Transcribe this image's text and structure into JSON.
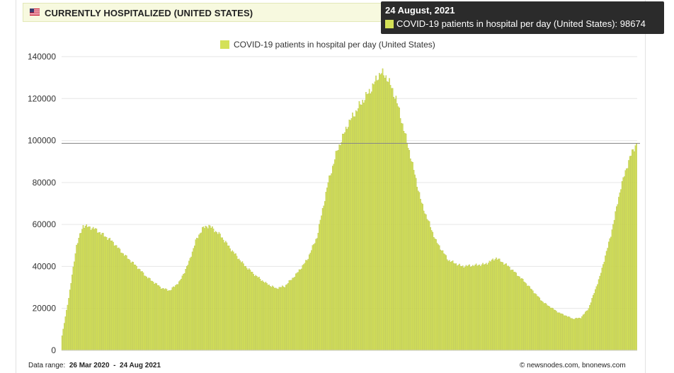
{
  "header": {
    "title": "CURRENTLY HOSPITALIZED (UNITED STATES)",
    "flag_icon": "us-flag-icon"
  },
  "tooltip": {
    "date": "24 August, 2021",
    "series_label": "COVID-19 patients in hospital per day (United States): ",
    "value": "98674"
  },
  "footer": {
    "range_label": "Data range:",
    "range_start": "26 Mar 2020",
    "range_sep": "-",
    "range_end": "24 Aug 2021",
    "source": "© newsnodes.com, bnonews.com"
  },
  "colors": {
    "bar": "#d4e157",
    "bar_stroke": "#a9b53a",
    "grid": "#e6e6e6",
    "reference_line": "#888888"
  },
  "chart_data": {
    "type": "bar",
    "legend": [
      "COVID-19 patients in hospital per day (United States)"
    ],
    "legend_position": "top-center",
    "x_start": "26 Mar 2020",
    "x_end": "24 Aug 2021",
    "ylim": [
      0,
      140000
    ],
    "yticks": [
      0,
      20000,
      40000,
      60000,
      80000,
      100000,
      120000,
      140000
    ],
    "grid": true,
    "reference_value": 98674,
    "series": [
      {
        "name": "COVID-19 patients in hospital per day (United States)",
        "keypoints": [
          [
            "2020-03-26",
            7000
          ],
          [
            "2020-04-01",
            25000
          ],
          [
            "2020-04-08",
            50000
          ],
          [
            "2020-04-14",
            59500
          ],
          [
            "2020-04-24",
            58000
          ],
          [
            "2020-05-10",
            52000
          ],
          [
            "2020-05-20",
            46000
          ],
          [
            "2020-06-01",
            40000
          ],
          [
            "2020-06-10",
            35000
          ],
          [
            "2020-06-24",
            29500
          ],
          [
            "2020-07-01",
            28500
          ],
          [
            "2020-07-10",
            33000
          ],
          [
            "2020-07-18",
            42000
          ],
          [
            "2020-07-24",
            52000
          ],
          [
            "2020-07-30",
            58000
          ],
          [
            "2020-08-05",
            59500
          ],
          [
            "2020-08-15",
            55000
          ],
          [
            "2020-08-25",
            48000
          ],
          [
            "2020-09-05",
            41000
          ],
          [
            "2020-09-15",
            36000
          ],
          [
            "2020-09-25",
            32000
          ],
          [
            "2020-10-04",
            29500
          ],
          [
            "2020-10-12",
            30500
          ],
          [
            "2020-10-22",
            36000
          ],
          [
            "2020-11-01",
            43000
          ],
          [
            "2020-11-10",
            54000
          ],
          [
            "2020-11-20",
            80000
          ],
          [
            "2020-11-28",
            95000
          ],
          [
            "2020-12-08",
            108000
          ],
          [
            "2020-12-20",
            118000
          ],
          [
            "2020-12-28",
            124000
          ],
          [
            "2021-01-06",
            132500
          ],
          [
            "2021-01-12",
            130000
          ],
          [
            "2021-01-20",
            120000
          ],
          [
            "2021-02-01",
            95000
          ],
          [
            "2021-02-12",
            70000
          ],
          [
            "2021-02-25",
            52000
          ],
          [
            "2021-03-08",
            43000
          ],
          [
            "2021-03-20",
            40000
          ],
          [
            "2021-04-01",
            40500
          ],
          [
            "2021-04-10",
            41000
          ],
          [
            "2021-04-20",
            44000
          ],
          [
            "2021-05-01",
            40000
          ],
          [
            "2021-05-15",
            33000
          ],
          [
            "2021-06-01",
            23000
          ],
          [
            "2021-06-15",
            18000
          ],
          [
            "2021-06-28",
            15000
          ],
          [
            "2021-07-05",
            15500
          ],
          [
            "2021-07-12",
            20000
          ],
          [
            "2021-07-22",
            35000
          ],
          [
            "2021-08-01",
            55000
          ],
          [
            "2021-08-10",
            78000
          ],
          [
            "2021-08-18",
            92000
          ],
          [
            "2021-08-24",
            98674
          ]
        ]
      }
    ]
  }
}
